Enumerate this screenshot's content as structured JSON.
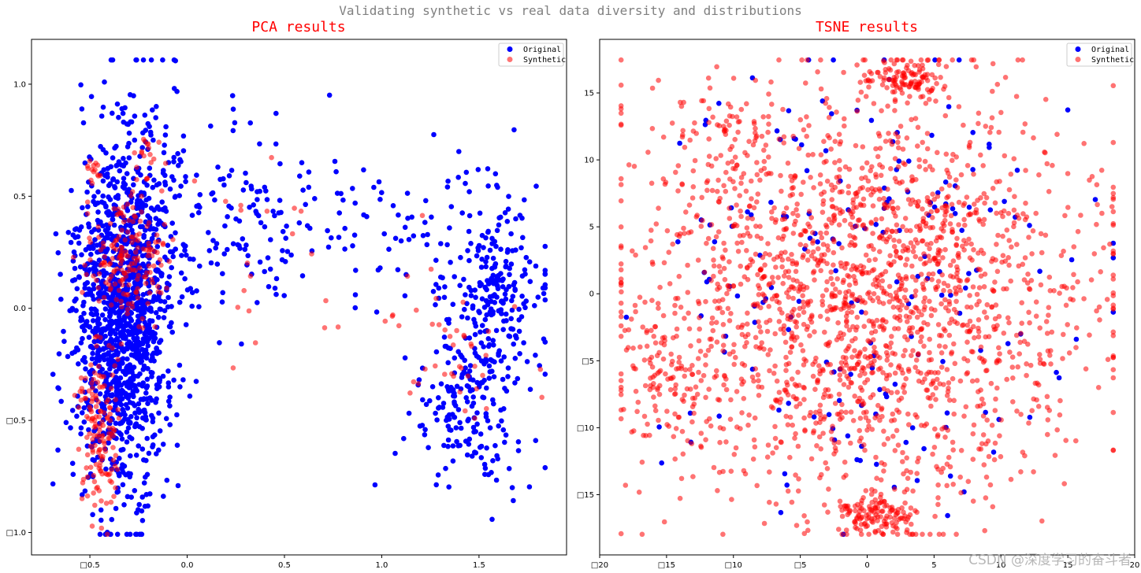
{
  "figure": {
    "suptitle": "Validating synthetic vs real data diversity and distributions",
    "watermark": "CSDN @深度学习的奋斗者"
  },
  "colors": {
    "original": "#0000ff",
    "synthetic": "#ff0000",
    "title": "#ff0000",
    "suptitle": "#808080"
  },
  "chart_data": [
    {
      "type": "scatter",
      "title": "PCA results",
      "xlim": [
        -0.8,
        1.95
      ],
      "ylim": [
        -1.1,
        1.2
      ],
      "xticks": [
        -0.5,
        0.0,
        0.5,
        1.0,
        1.5
      ],
      "xtick_labels": [
        "□0.5",
        "0.0",
        "0.5",
        "1.0",
        "1.5"
      ],
      "yticks": [
        -1.0,
        -0.5,
        0.0,
        0.5,
        1.0
      ],
      "ytick_labels": [
        "□1.0",
        "□0.5",
        "0.0",
        "0.5",
        "1.0"
      ],
      "legend": {
        "position": "top-right",
        "entries": [
          "Original",
          "Synthetic"
        ]
      },
      "series": [
        {
          "name": "Original",
          "color": "#0000ff",
          "alpha": 1.0,
          "count": 2000,
          "clusters": [
            {
              "cx": -0.33,
              "cy": -0.05,
              "sx": 0.13,
              "sy": 0.38,
              "w": 0.63
            },
            {
              "cx": -0.2,
              "cy": 0.55,
              "sx": 0.16,
              "sy": 0.22,
              "w": 0.06
            },
            {
              "cx": 0.35,
              "cy": 0.4,
              "sx": 0.25,
              "sy": 0.2,
              "w": 0.06
            },
            {
              "cx": 1.2,
              "cy": 0.35,
              "sx": 0.25,
              "sy": 0.22,
              "w": 0.04
            },
            {
              "cx": 1.6,
              "cy": 0.05,
              "sx": 0.12,
              "sy": 0.18,
              "w": 0.12
            },
            {
              "cx": 1.45,
              "cy": -0.45,
              "sx": 0.15,
              "sy": 0.18,
              "w": 0.09
            }
          ]
        },
        {
          "name": "Synthetic",
          "color": "#ff0000",
          "alpha": 0.55,
          "count": 420,
          "clusters": [
            {
              "cx": -0.45,
              "cy": -0.55,
              "sx": 0.05,
              "sy": 0.18,
              "w": 0.32
            },
            {
              "cx": -0.3,
              "cy": 0.22,
              "sx": 0.1,
              "sy": 0.15,
              "w": 0.4
            },
            {
              "cx": -0.48,
              "cy": 0.62,
              "sx": 0.02,
              "sy": 0.03,
              "w": 0.04
            },
            {
              "cx": -0.2,
              "cy": 0.7,
              "sx": 0.04,
              "sy": 0.06,
              "w": 0.04
            },
            {
              "cx": 1.3,
              "cy": -0.2,
              "sx": 0.2,
              "sy": 0.15,
              "w": 0.12
            },
            {
              "cx": 0.4,
              "cy": 0.3,
              "sx": 0.2,
              "sy": 0.25,
              "w": 0.08
            }
          ]
        }
      ]
    },
    {
      "type": "scatter",
      "title": "TSNE results",
      "xlim": [
        -20,
        20
      ],
      "ylim": [
        -19.5,
        19
      ],
      "xticks": [
        -20,
        -15,
        -10,
        -5,
        0,
        5,
        10,
        15,
        20
      ],
      "xtick_labels": [
        "□20",
        "□15",
        "□10",
        "□5",
        "0",
        "5",
        "10",
        "15",
        "20"
      ],
      "yticks": [
        -15,
        -10,
        -5,
        0,
        5,
        10,
        15
      ],
      "ytick_labels": [
        "□15",
        "□10",
        "□5",
        "0",
        "5",
        "10",
        "15"
      ],
      "legend": {
        "position": "top-right",
        "entries": [
          "Original",
          "Synthetic"
        ]
      },
      "series": [
        {
          "name": "Original",
          "color": "#0000ff",
          "alpha": 1.0,
          "count": 180,
          "clusters": [
            {
              "cx": 0,
              "cy": 0,
              "sx": 8,
              "sy": 8,
              "w": 1.0
            }
          ]
        },
        {
          "name": "Synthetic",
          "color": "#ff0000",
          "alpha": 0.55,
          "count": 2400,
          "clusters": [
            {
              "cx": 0,
              "cy": 0,
              "sx": 8.5,
              "sy": 7.5,
              "w": 0.82
            },
            {
              "cx": 3,
              "cy": 16,
              "sx": 1.6,
              "sy": 0.8,
              "w": 0.05
            },
            {
              "cx": 1,
              "cy": -16.5,
              "sx": 1.6,
              "sy": 0.8,
              "w": 0.05
            },
            {
              "cx": -10,
              "cy": 12,
              "sx": 2.5,
              "sy": 2,
              "w": 0.04
            },
            {
              "cx": -15,
              "cy": -6,
              "sx": 2,
              "sy": 3,
              "w": 0.04
            }
          ]
        }
      ]
    }
  ]
}
